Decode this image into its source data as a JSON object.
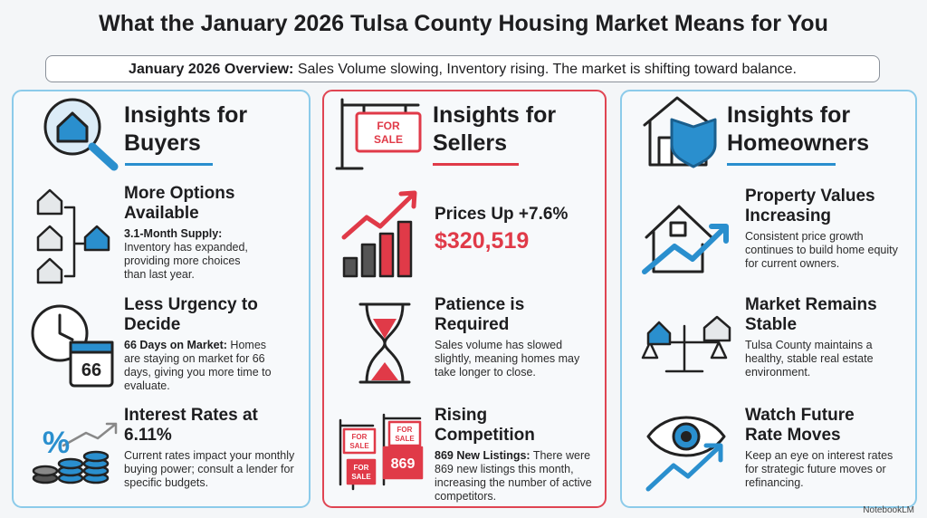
{
  "title": "What the January 2026 Tulsa County Housing Market Means for You",
  "overview": {
    "label": "January 2026 Overview:",
    "text": "Sales Volume slowing, Inventory rising. The market is shifting toward balance."
  },
  "columns": [
    {
      "heading": "Insights for Buyers",
      "items": [
        {
          "title": "More Options Available",
          "lead": "3.1-Month Supply:",
          "body": "Inventory has expanded, providing more choices than last year."
        },
        {
          "title": "Less Urgency to Decide",
          "lead": "66 Days on Market:",
          "body": "Homes are staying on market for 66 days, giving you more time to evaluate.",
          "icon_text": "66"
        },
        {
          "title": "Interest Rates at 6.11%",
          "body": "Current rates impact your monthly buying power; consult a lender for specific budgets.",
          "icon_text": "%"
        }
      ]
    },
    {
      "heading": "Insights for Sellers",
      "sign_text": [
        "FOR",
        "SALE"
      ],
      "items": [
        {
          "title": "Prices Up +7.6%",
          "highlight": "$320,519"
        },
        {
          "title": "Patience is Required",
          "body": "Sales volume has slowed slightly, meaning homes may take longer to close."
        },
        {
          "title": "Rising Competition",
          "lead": "869 New Listings:",
          "body": "There were 869 new listings this month, increasing the number of active competitors.",
          "icon_text": "869"
        }
      ]
    },
    {
      "heading": "Insights for Homeowners",
      "items": [
        {
          "title": "Property Values Increasing",
          "body": "Consistent price growth continues to build home equity for current owners."
        },
        {
          "title": "Market Remains Stable",
          "body": "Tulsa County maintains a healthy, stable real estate environment."
        },
        {
          "title": "Watch Future Rate Moves",
          "body": "Keep an eye on interest rates for strategic future moves or refinancing."
        }
      ]
    }
  ],
  "footer": "NotebookLM"
}
